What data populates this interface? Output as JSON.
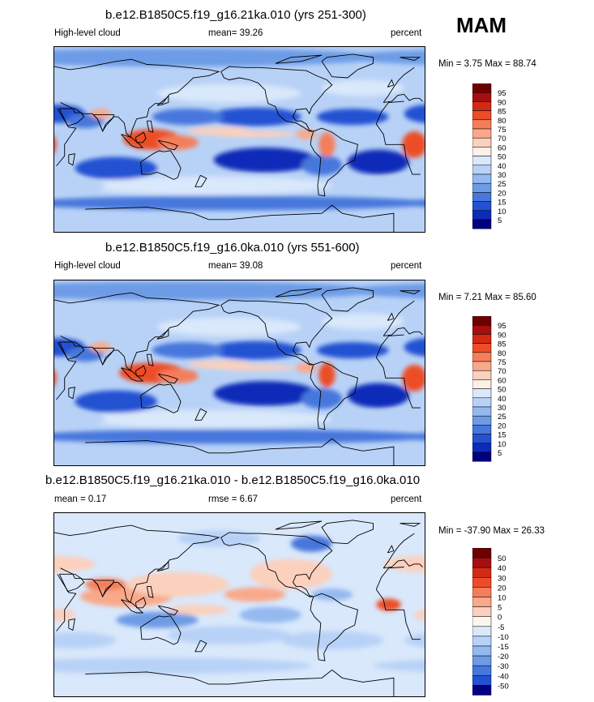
{
  "season": "MAM",
  "panels": [
    {
      "title": "b.e12.B1850C5.f19_g16.21ka.010 (yrs 251-300)",
      "left_label": "High-level cloud",
      "center_label": "mean=  39.26",
      "right_label": "percent",
      "minmax": "Min =   3.75 Max =  88.74",
      "type": "abs"
    },
    {
      "title": "b.e12.B1850C5.f19_g16.0ka.010 (yrs 551-600)",
      "left_label": "High-level cloud",
      "center_label": "mean=  39.08",
      "right_label": "percent",
      "minmax": "Min =   7.21 Max =  85.60",
      "type": "abs"
    },
    {
      "title": "b.e12.B1850C5.f19_g16.21ka.010 - b.e12.B1850C5.f19_g16.0ka.010",
      "left_label": "mean =   0.17",
      "center_label": "rmse =   6.67",
      "right_label": "percent",
      "minmax": "Min = -37.90 Max =  26.33",
      "type": "diff"
    }
  ],
  "colorbars": {
    "abs_levels": [
      "95",
      "90",
      "85",
      "80",
      "75",
      "70",
      "60",
      "50",
      "40",
      "30",
      "25",
      "20",
      "15",
      "10",
      "5"
    ],
    "diff_levels": [
      "50",
      "40",
      "30",
      "20",
      "10",
      "5",
      "0",
      "-5",
      "-10",
      "-15",
      "-20",
      "-30",
      "-40",
      "-50"
    ],
    "colors": [
      "#6e0000",
      "#a50f0f",
      "#d42a14",
      "#ec4d28",
      "#f57e5a",
      "#f9a98a",
      "#fbd0bd",
      "#fdf0e6",
      "#d9e8fb",
      "#b8d2f7",
      "#94b9f0",
      "#6d9be6",
      "#4677dc",
      "#2351d2",
      "#0b2bb8",
      "#000080"
    ]
  },
  "chart_data": [
    {
      "type": "heatmap",
      "title": "b.e12.B1850C5.f19_g16.21ka.010 (yrs 251-300)",
      "variable": "High-level cloud",
      "units": "percent",
      "mean": 39.26,
      "min": 3.75,
      "max": 88.74,
      "contour_levels": [
        5,
        10,
        15,
        20,
        25,
        30,
        40,
        50,
        60,
        70,
        75,
        80,
        85,
        90,
        95
      ]
    },
    {
      "type": "heatmap",
      "title": "b.e12.B1850C5.f19_g16.0ka.010 (yrs 551-600)",
      "variable": "High-level cloud",
      "units": "percent",
      "mean": 39.08,
      "min": 7.21,
      "max": 85.6,
      "contour_levels": [
        5,
        10,
        15,
        20,
        25,
        30,
        40,
        50,
        60,
        70,
        75,
        80,
        85,
        90,
        95
      ]
    },
    {
      "type": "heatmap",
      "title": "b.e12.B1850C5.f19_g16.21ka.010 - b.e12.B1850C5.f19_g16.0ka.010",
      "units": "percent",
      "mean": 0.17,
      "rmse": 6.67,
      "min": -37.9,
      "max": 26.33,
      "contour_levels": [
        -50,
        -40,
        -30,
        -20,
        -15,
        -10,
        -5,
        0,
        5,
        10,
        20,
        30,
        40,
        50
      ]
    }
  ]
}
